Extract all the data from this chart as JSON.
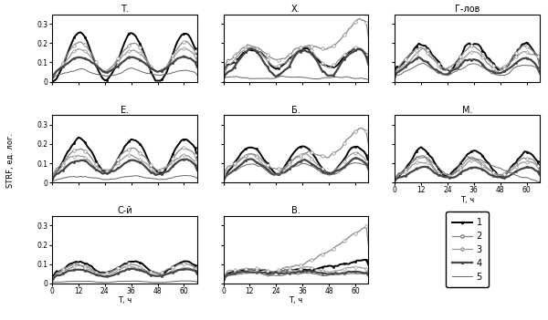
{
  "panels": [
    "Т.",
    "Х.",
    "Г-лов",
    "Е.",
    "Б.",
    "М.",
    "С-й",
    "В."
  ],
  "xlabel": "T, ч",
  "ylabel": "STRF, ед. лог.",
  "ylim": [
    0,
    0.35
  ],
  "yticks": [
    0,
    0.1,
    0.2,
    0.3
  ],
  "xticks": [
    0,
    12,
    24,
    36,
    48,
    60
  ],
  "legend_labels": [
    "1",
    "2",
    "3",
    "4",
    "5"
  ],
  "background_color": "#ffffff"
}
